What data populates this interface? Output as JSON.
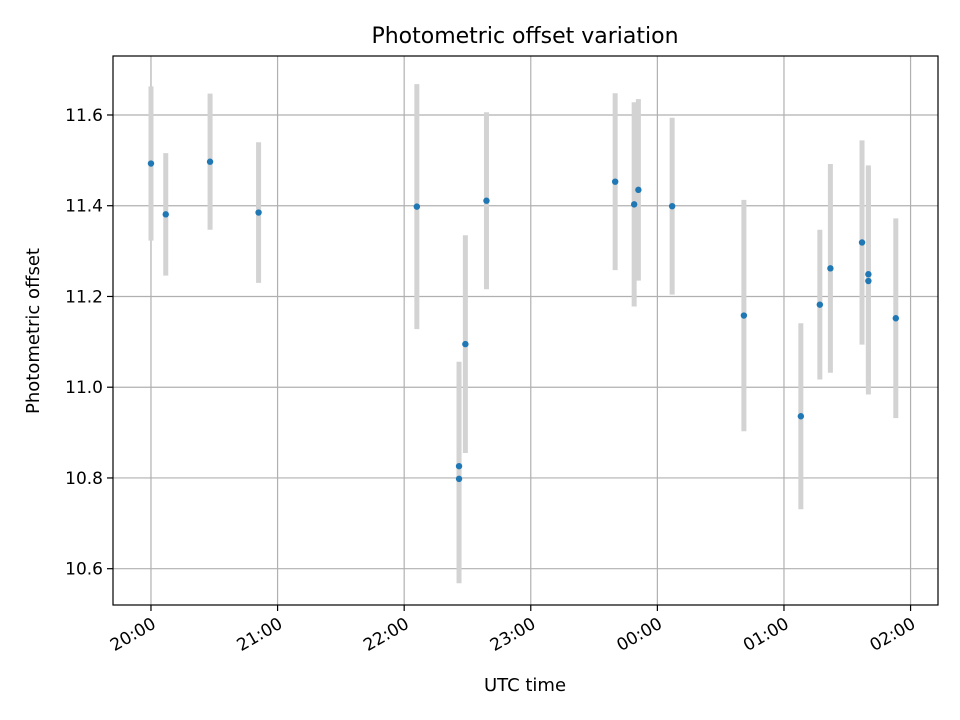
{
  "chart_data": {
    "type": "scatter",
    "title": "Photometric offset variation",
    "xlabel": "UTC time",
    "ylabel": "Photometric offset",
    "x_is_time": true,
    "xlim": [
      "19:42",
      "02:13"
    ],
    "ylim": [
      10.52,
      11.73
    ],
    "x_ticks": [
      "20:00",
      "21:00",
      "22:00",
      "23:00",
      "00:00",
      "01:00",
      "02:00"
    ],
    "y_ticks": [
      10.6,
      10.8,
      11.0,
      11.2,
      11.4,
      11.6
    ],
    "y_tick_labels": [
      "10.6",
      "10.8",
      "11.0",
      "11.2",
      "11.4",
      "11.6"
    ],
    "grid": true,
    "colors": {
      "marker": "#1f77b4",
      "errorbar": "#d3d3d3",
      "grid": "#b0b0b0"
    },
    "series": [
      {
        "points": [
          {
            "x": "20:00",
            "y": 11.493,
            "err": 0.17
          },
          {
            "x": "20:07",
            "y": 11.381,
            "err": 0.135
          },
          {
            "x": "20:28",
            "y": 11.497,
            "err": 0.15
          },
          {
            "x": "20:51",
            "y": 11.385,
            "err": 0.155
          },
          {
            "x": "22:06",
            "y": 11.398,
            "err": 0.27
          },
          {
            "x": "22:26",
            "y": 10.826,
            "err": 0.23
          },
          {
            "x": "22:26",
            "y": 10.798,
            "err": 0.23
          },
          {
            "x": "22:29",
            "y": 11.095,
            "err": 0.24
          },
          {
            "x": "22:39",
            "y": 11.411,
            "err": 0.195
          },
          {
            "x": "23:40",
            "y": 11.453,
            "err": 0.195
          },
          {
            "x": "23:49",
            "y": 11.403,
            "err": 0.225
          },
          {
            "x": "23:51",
            "y": 11.435,
            "err": 0.2
          },
          {
            "x": "00:07",
            "y": 11.399,
            "err": 0.195
          },
          {
            "x": "00:41",
            "y": 11.158,
            "err": 0.255
          },
          {
            "x": "01:08",
            "y": 10.936,
            "err": 0.205
          },
          {
            "x": "01:17",
            "y": 11.182,
            "err": 0.165
          },
          {
            "x": "01:22",
            "y": 11.262,
            "err": 0.23
          },
          {
            "x": "01:37",
            "y": 11.319,
            "err": 0.225
          },
          {
            "x": "01:40",
            "y": 11.249,
            "err": 0.24
          },
          {
            "x": "01:40",
            "y": 11.234,
            "err": 0.25
          },
          {
            "x": "01:53",
            "y": 11.152,
            "err": 0.22
          }
        ]
      }
    ]
  }
}
